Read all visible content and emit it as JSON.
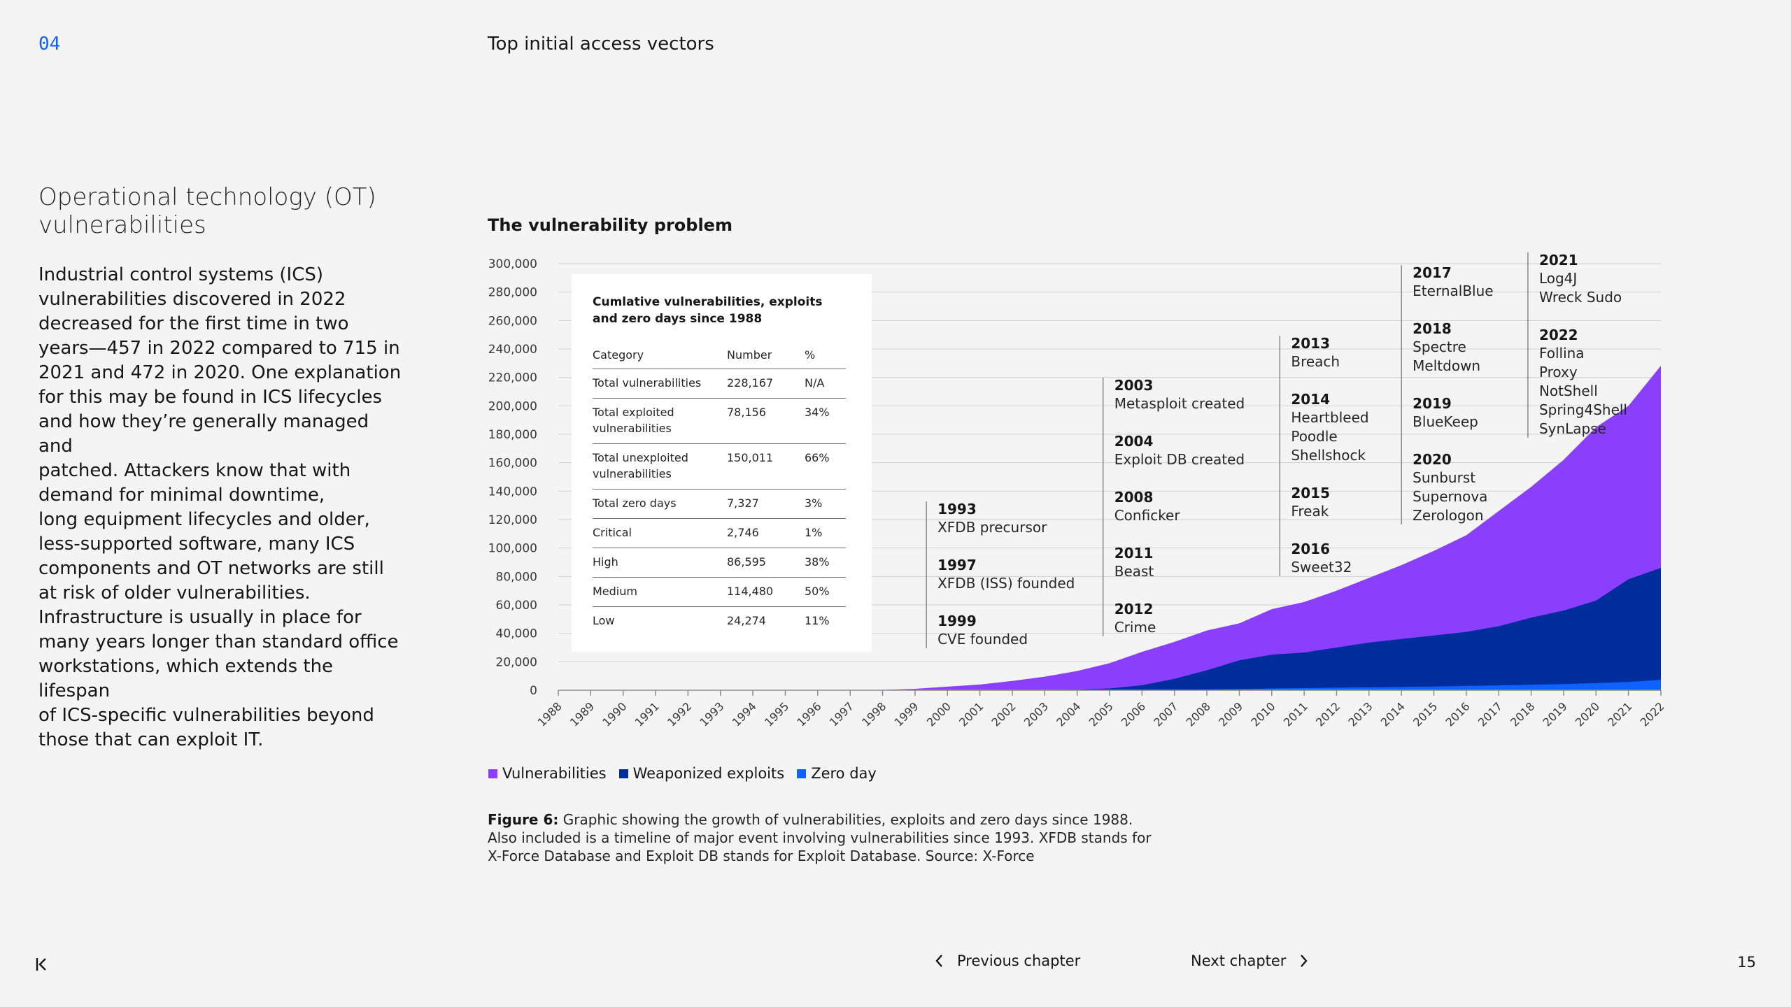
{
  "header": {
    "chapter_number": "04",
    "chapter_title": "Top initial access vectors"
  },
  "section": {
    "title": "Operational technology (OT)\nvulnerabilities",
    "body": "Industrial control systems (ICS)\nvulnerabilities discovered in 2022\ndecreased for the first time in two\nyears—457 in 2022 compared to 715 in\n2021 and 472 in 2020. One explanation\nfor this may be found in ICS lifecycles\nand how they’re generally managed and\npatched. Attackers know that with\ndemand for minimal downtime,\nlong equipment lifecycles and older,\nless-supported software, many ICS\ncomponents and OT networks are still\nat risk of older vulnerabilities.\nInfrastructure is usually in place for\nmany years longer than standard office\nworkstations, which extends the lifespan\nof ICS-specific vulnerabilities beyond\nthose that can exploit IT."
  },
  "chart_data": {
    "type": "area",
    "title": "The vulnerability problem",
    "stacked": false,
    "x": [
      1988,
      1989,
      1990,
      1991,
      1992,
      1993,
      1994,
      1995,
      1996,
      1997,
      1998,
      1999,
      2000,
      2001,
      2002,
      2003,
      2004,
      2005,
      2006,
      2007,
      2008,
      2009,
      2010,
      2011,
      2012,
      2013,
      2014,
      2015,
      2016,
      2017,
      2018,
      2019,
      2020,
      2021,
      2022
    ],
    "x_tick_labels": [
      "1988",
      "1989",
      "1990",
      "1991",
      "1992",
      "1993",
      "1994",
      "1995",
      "1996",
      "1997",
      "1998",
      "1999",
      "2000",
      "2001",
      "2002",
      "2003",
      "2004",
      "2005",
      "2006",
      "2007",
      "2008",
      "2009",
      "2010",
      "2011",
      "2012",
      "2013",
      "2014",
      "2015",
      "2016",
      "2017",
      "2018",
      "2019",
      "2020",
      "2021",
      "2022"
    ],
    "ylim": [
      0,
      300000
    ],
    "y_ticks": [
      0,
      20000,
      40000,
      60000,
      80000,
      100000,
      120000,
      140000,
      160000,
      180000,
      200000,
      220000,
      240000,
      260000,
      280000,
      300000
    ],
    "y_tick_labels": [
      "0",
      "20,000",
      "40,000",
      "60,000",
      "80,000",
      "100,000",
      "120,000",
      "140,000",
      "160,000",
      "180,000",
      "200,000",
      "220,000",
      "240,000",
      "260,000",
      "280,000",
      "300,000"
    ],
    "grid": true,
    "legend_position": "bottom-left",
    "series": [
      {
        "name": "Vulnerabilities",
        "color": "#8a3ffc",
        "values": [
          0,
          0,
          0,
          0,
          0,
          0,
          0,
          0,
          0,
          0,
          200,
          1000,
          2500,
          4000,
          6500,
          9500,
          13500,
          19000,
          27000,
          34000,
          42000,
          47000,
          57000,
          62000,
          70000,
          79000,
          88000,
          98000,
          109000,
          126000,
          143000,
          162000,
          185000,
          200000,
          228167
        ]
      },
      {
        "name": "Weaponized exploits",
        "color": "#002d9c",
        "values": [
          0,
          0,
          0,
          0,
          0,
          0,
          0,
          0,
          0,
          0,
          0,
          0,
          0,
          0,
          0,
          100,
          400,
          1200,
          3500,
          8000,
          14000,
          21000,
          25000,
          26500,
          30000,
          33500,
          36000,
          38500,
          41000,
          45000,
          51000,
          56000,
          63000,
          78000,
          86000
        ]
      },
      {
        "name": "Zero day",
        "color": "#0f62fe",
        "values": [
          0,
          0,
          0,
          0,
          0,
          0,
          0,
          0,
          0,
          0,
          0,
          0,
          0,
          0,
          0,
          0,
          0,
          0,
          0,
          200,
          500,
          800,
          1200,
          1500,
          1800,
          2000,
          2300,
          2600,
          3000,
          3400,
          3800,
          4300,
          5000,
          5800,
          7327
        ]
      }
    ],
    "timeline": [
      {
        "events": [
          {
            "year": "1993",
            "label": "XFDB precursor"
          },
          {
            "year": "1997",
            "label": "XFDB (ISS) founded"
          },
          {
            "year": "1999",
            "label": "CVE founded"
          }
        ]
      },
      {
        "events": [
          {
            "year": "2003",
            "label": "Metasploit created"
          },
          {
            "year": "2004",
            "label": "Exploit DB created"
          },
          {
            "year": "2008",
            "label": "Conficker"
          },
          {
            "year": "2011",
            "label": "Beast"
          },
          {
            "year": "2012",
            "label": "Crime"
          }
        ]
      },
      {
        "events": [
          {
            "year": "2013",
            "label": "Breach"
          },
          {
            "year": "2014",
            "label": "Heartbleed\nPoodle\nShellshock"
          },
          {
            "year": "2015",
            "label": "Freak"
          },
          {
            "year": "2016",
            "label": "Sweet32"
          }
        ]
      },
      {
        "events": [
          {
            "year": "2017",
            "label": "EternalBlue"
          },
          {
            "year": "2018",
            "label": "Spectre\nMeltdown"
          },
          {
            "year": "2019",
            "label": "BlueKeep"
          },
          {
            "year": "2020",
            "label": "Sunburst\nSupernova\nZerologon"
          }
        ]
      },
      {
        "events": [
          {
            "year": "2021",
            "label": "Log4J\nWreck Sudo"
          },
          {
            "year": "2022",
            "label": "Follina\nProxy\nNotShell\nSpring4Shell\nSynLapse"
          }
        ]
      }
    ],
    "inset_table": {
      "title": "Cumlative vulnerabilities, exploits and zero days since 1988",
      "columns": [
        "Category",
        "Number",
        "%"
      ],
      "rows": [
        [
          "Total vulnerabilities",
          "228,167",
          "N/A"
        ],
        [
          "Total exploited vulnerabilities",
          "78,156",
          "34%"
        ],
        [
          "Total unexploited vulnerabilities",
          "150,011",
          "66%"
        ],
        [
          "Total zero days",
          "7,327",
          "3%"
        ],
        [
          "Critical",
          "2,746",
          "1%"
        ],
        [
          "High",
          "86,595",
          "38%"
        ],
        [
          "Medium",
          "114,480",
          "50%"
        ],
        [
          "Low",
          "24,274",
          "11%"
        ]
      ]
    }
  },
  "caption": {
    "label": "Figure 6:",
    "text": " Graphic showing the growth of vulnerabilities, exploits and zero days since 1988. Also included is a timeline of major event involving vulnerabilities since 1993. XFDB stands for X-Force Database and Exploit DB stands for Exploit Database. Source: X-Force"
  },
  "footer": {
    "first_icon": "first-page-icon",
    "previous_label": "Previous chapter",
    "next_label": "Next chapter",
    "page_number": "15"
  }
}
